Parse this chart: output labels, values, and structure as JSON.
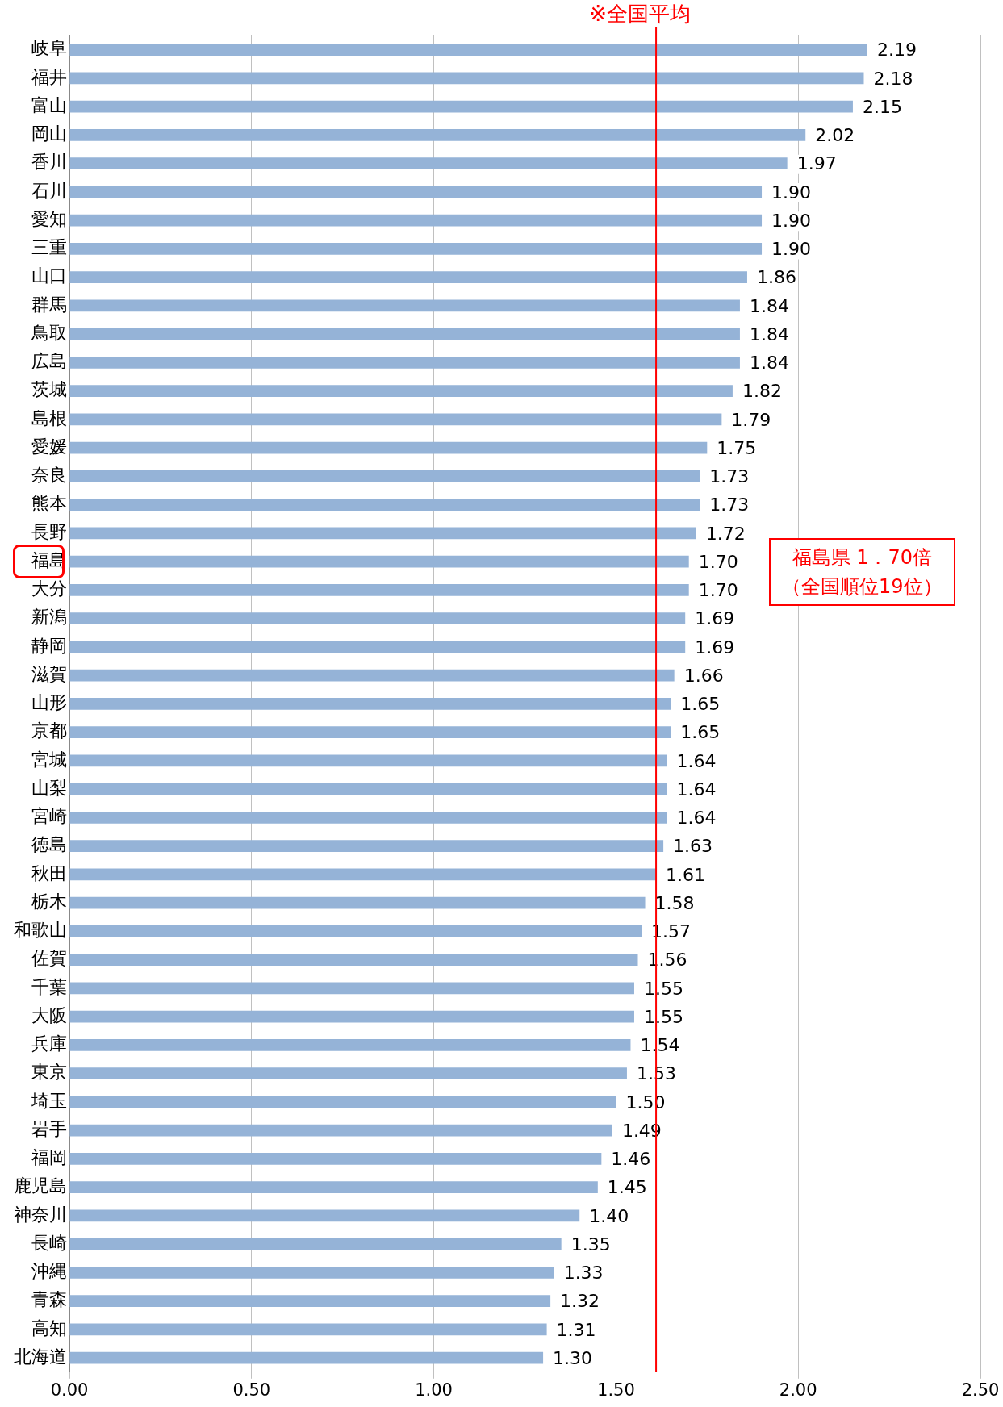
{
  "chart_data": {
    "type": "bar",
    "orientation": "horizontal",
    "categories": [
      "岐阜",
      "福井",
      "富山",
      "岡山",
      "香川",
      "石川",
      "愛知",
      "三重",
      "山口",
      "群馬",
      "鳥取",
      "広島",
      "茨城",
      "島根",
      "愛媛",
      "奈良",
      "熊本",
      "長野",
      "福島",
      "大分",
      "新潟",
      "静岡",
      "滋賀",
      "山形",
      "京都",
      "宮城",
      "山梨",
      "宮崎",
      "徳島",
      "秋田",
      "栃木",
      "和歌山",
      "佐賀",
      "千葉",
      "大阪",
      "兵庫",
      "東京",
      "埼玉",
      "岩手",
      "福岡",
      "鹿児島",
      "神奈川",
      "長崎",
      "沖縄",
      "青森",
      "高知",
      "北海道"
    ],
    "values": [
      2.19,
      2.18,
      2.15,
      2.02,
      1.97,
      1.9,
      1.9,
      1.9,
      1.86,
      1.84,
      1.84,
      1.84,
      1.82,
      1.79,
      1.75,
      1.73,
      1.73,
      1.72,
      1.7,
      1.7,
      1.69,
      1.69,
      1.66,
      1.65,
      1.65,
      1.64,
      1.64,
      1.64,
      1.63,
      1.61,
      1.58,
      1.57,
      1.56,
      1.55,
      1.55,
      1.54,
      1.53,
      1.5,
      1.49,
      1.46,
      1.45,
      1.4,
      1.35,
      1.33,
      1.32,
      1.31,
      1.3
    ],
    "value_labels": [
      "2.19",
      "2.18",
      "2.15",
      "2.02",
      "1.97",
      "1.90",
      "1.90",
      "1.90",
      "1.86",
      "1.84",
      "1.84",
      "1.84",
      "1.82",
      "1.79",
      "1.75",
      "1.73",
      "1.73",
      "1.72",
      "1.70",
      "1.70",
      "1.69",
      "1.69",
      "1.66",
      "1.65",
      "1.65",
      "1.64",
      "1.64",
      "1.64",
      "1.63",
      "1.61",
      "1.58",
      "1.57",
      "1.56",
      "1.55",
      "1.55",
      "1.54",
      "1.53",
      "1.50",
      "1.49",
      "1.46",
      "1.45",
      "1.40",
      "1.35",
      "1.33",
      "1.32",
      "1.31",
      "1.30"
    ],
    "color": "#95b3d7",
    "xlim": [
      0,
      2.5
    ],
    "xticks": [
      {
        "value": 0,
        "label": "0.00"
      },
      {
        "value": 0.5,
        "label": "0.50"
      },
      {
        "value": 1,
        "label": "1.00"
      },
      {
        "value": 1.5,
        "label": "1.50"
      },
      {
        "value": 2,
        "label": "2.00"
      },
      {
        "value": 2.5,
        "label": "2.50"
      }
    ],
    "grid": "x",
    "legend": false,
    "ref_lines": [
      {
        "axis": "x",
        "value": 1.61,
        "label": "※全国平均",
        "color": "#ff0000"
      }
    ],
    "annotations": [
      "福島県 1．70倍",
      "（全国順位19位）"
    ]
  }
}
